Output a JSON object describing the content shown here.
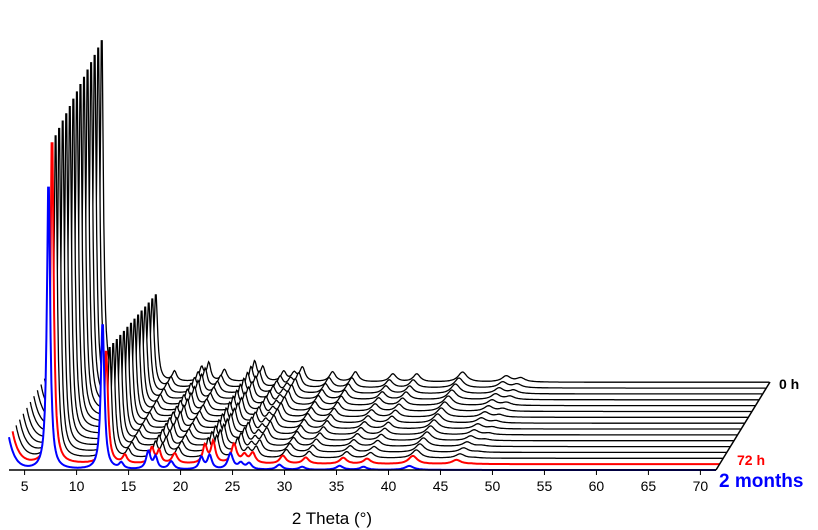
{
  "chart_data": {
    "type": "line",
    "style": "waterfall",
    "xlabel": "2 Theta (°)",
    "xlim": [
      3.5,
      71.5
    ],
    "x_ticks": [
      5,
      10,
      15,
      20,
      25,
      30,
      35,
      40,
      45,
      50,
      55,
      60,
      65,
      70
    ],
    "y_axis_shown": false,
    "grid": false,
    "series_count": 16,
    "series_colors": {
      "default": "#000000",
      "highlight_72h": "#ff0000",
      "final_2months": "#0000ff"
    },
    "labels": {
      "first": "0 h",
      "highlight": "72 h",
      "last": "2 months"
    },
    "peaks_2theta": [
      5.0,
      7.3,
      12.5,
      14.3,
      16.9,
      17.6,
      19.1,
      22.0,
      22.8,
      24.8,
      25.8,
      26.6,
      29.5,
      31.7,
      35.3,
      37.6,
      42.0
    ]
  }
}
